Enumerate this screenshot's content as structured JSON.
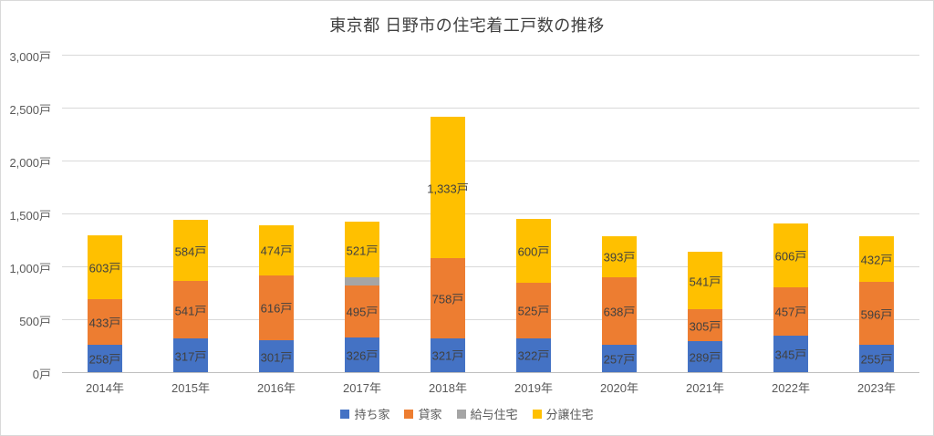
{
  "chart_data": {
    "type": "bar",
    "stacked": true,
    "title": "東京都 日野市の住宅着工戸数の推移",
    "categories": [
      "2014年",
      "2015年",
      "2016年",
      "2017年",
      "2018年",
      "2019年",
      "2020年",
      "2021年",
      "2022年",
      "2023年"
    ],
    "series": [
      {
        "name": "持ち家",
        "color": "#4472C4",
        "labels_shown": true,
        "values": [
          258,
          317,
          301,
          326,
          321,
          322,
          257,
          289,
          345,
          255
        ]
      },
      {
        "name": "貸家",
        "color": "#ED7D31",
        "labels_shown": true,
        "values": [
          433,
          541,
          616,
          495,
          758,
          525,
          638,
          305,
          457,
          596
        ]
      },
      {
        "name": "給与住宅",
        "color": "#A5A5A5",
        "labels_shown": false,
        "values": [
          0,
          0,
          0,
          78,
          0,
          0,
          0,
          0,
          0,
          0
        ]
      },
      {
        "name": "分譲住宅",
        "color": "#FFC000",
        "labels_shown": true,
        "values": [
          603,
          584,
          474,
          521,
          1333,
          600,
          393,
          541,
          606,
          432
        ]
      }
    ],
    "data_label_suffix": "戸",
    "ylabel": "",
    "xlabel": "",
    "ylim": [
      0,
      3000
    ],
    "ytick_step": 500,
    "ytick_labels": [
      "0戸",
      "500戸",
      "1,000戸",
      "1,500戸",
      "2,000戸",
      "2,500戸",
      "3,000戸"
    ],
    "grid": true,
    "legend_position": "bottom",
    "legend_entries": [
      "持ち家",
      "貸家",
      "給与住宅",
      "分譲住宅"
    ]
  }
}
